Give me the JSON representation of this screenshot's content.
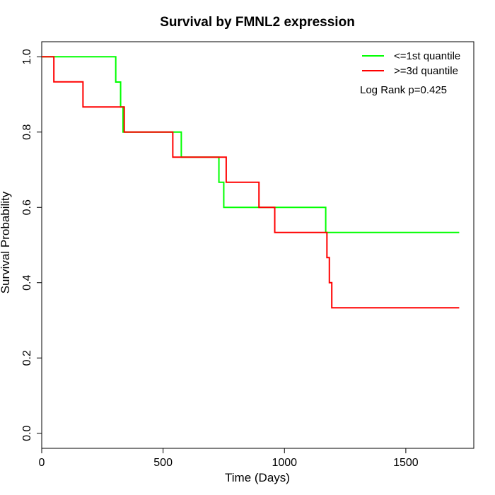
{
  "chart_data": {
    "type": "line",
    "title": "Survival by FMNL2 expression",
    "xlabel": "Time (Days)",
    "ylabel": "Survival Probability",
    "xlim": [
      0,
      1780
    ],
    "ylim": [
      -0.04,
      1.04
    ],
    "xticks": [
      0,
      500,
      1000,
      1500
    ],
    "yticks": [
      0.0,
      0.2,
      0.4,
      0.6,
      0.8,
      1.0
    ],
    "ytick_labels": [
      "0.0",
      "0.2",
      "0.4",
      "0.6",
      "0.8",
      "1.0"
    ],
    "xtick_labels": [
      "0",
      "500",
      "1000",
      "1500"
    ],
    "legend_position": "top-right",
    "annotation": "Log Rank p=0.425",
    "series": [
      {
        "name": "<=1st quantile",
        "color": "#00ff00",
        "step": true,
        "x": [
          0,
          305,
          325,
          335,
          575,
          730,
          750,
          1170,
          1720
        ],
        "y": [
          1.0,
          0.933,
          0.8667,
          0.8,
          0.7333,
          0.6667,
          0.6,
          0.5333,
          0.5333
        ]
      },
      {
        "name": ">=3d quantile",
        "color": "#ff0000",
        "step": true,
        "x": [
          0,
          50,
          170,
          340,
          540,
          760,
          895,
          960,
          1175,
          1185,
          1195,
          1720
        ],
        "y": [
          1.0,
          0.9333,
          0.8667,
          0.8,
          0.7333,
          0.6667,
          0.6,
          0.5333,
          0.4667,
          0.4,
          0.3333,
          0.3333
        ]
      }
    ]
  }
}
